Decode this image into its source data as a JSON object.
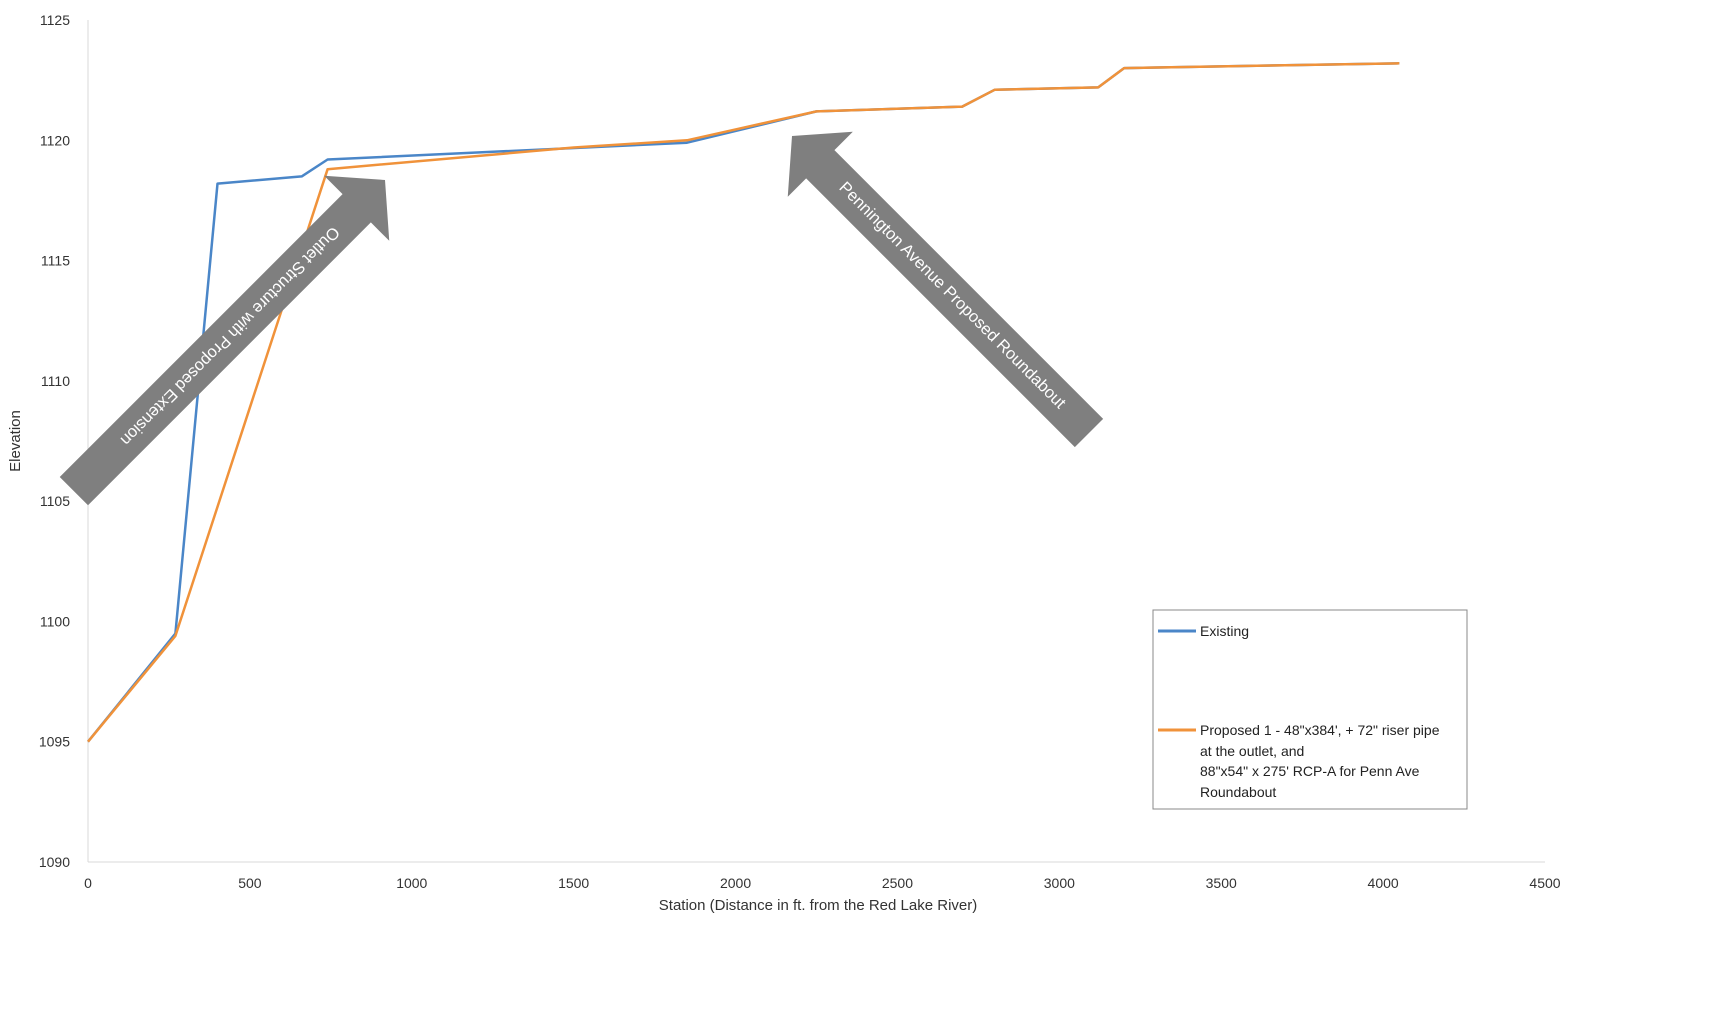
{
  "chart_data": {
    "type": "line",
    "title": "",
    "xlabel": "Station (Distance in ft. from the Red Lake River)",
    "ylabel": "Elevation",
    "xlim": [
      0,
      4500
    ],
    "ylim": [
      1090,
      1125
    ],
    "x_ticks": [
      0,
      500,
      1000,
      1500,
      2000,
      2500,
      3000,
      3500,
      4000,
      4500
    ],
    "y_ticks": [
      1090,
      1095,
      1100,
      1105,
      1110,
      1115,
      1120,
      1125
    ],
    "grid": false,
    "legend_position": "bottom-right",
    "series": [
      {
        "name": "Existing",
        "color": "#4a86c8",
        "x": [
          0,
          270,
          400,
          660,
          740,
          1850,
          2250,
          2700,
          2800,
          3120,
          3200,
          4050
        ],
        "y": [
          1095.0,
          1099.5,
          1118.2,
          1118.5,
          1119.2,
          1119.9,
          1121.2,
          1121.4,
          1122.1,
          1122.2,
          1123.0,
          1123.2
        ]
      },
      {
        "name": "Proposed 1 - 48\"x384', + 72\" riser pipe at the outlet, and 88\"x54\" x 275' RCP-A for Penn Ave Roundabout",
        "name_lines": [
          "Proposed 1 - 48\"x384', + 72\" riser pipe",
          "at the outlet, and",
          "88\"x54\" x 275' RCP-A for Penn Ave",
          "Roundabout"
        ],
        "color": "#f0923a",
        "x": [
          0,
          270,
          740,
          1500,
          1850,
          2250,
          2700,
          2800,
          3120,
          3200,
          4050
        ],
        "y": [
          1095.0,
          1099.4,
          1118.8,
          1119.7,
          1120.0,
          1121.2,
          1121.4,
          1122.1,
          1122.2,
          1123.0,
          1123.2
        ]
      }
    ],
    "annotations": [
      {
        "text": "Outlet Structure with Proposed Extension",
        "color": "#7f7f7f",
        "text_color": "#ffffff",
        "points_to": [
          790,
          1118.6
        ]
      },
      {
        "text": "Pennington Avenue Proposed Roundabout",
        "color": "#7f7f7f",
        "text_color": "#ffffff",
        "points_to": [
          2130,
          1120.9
        ]
      }
    ]
  }
}
